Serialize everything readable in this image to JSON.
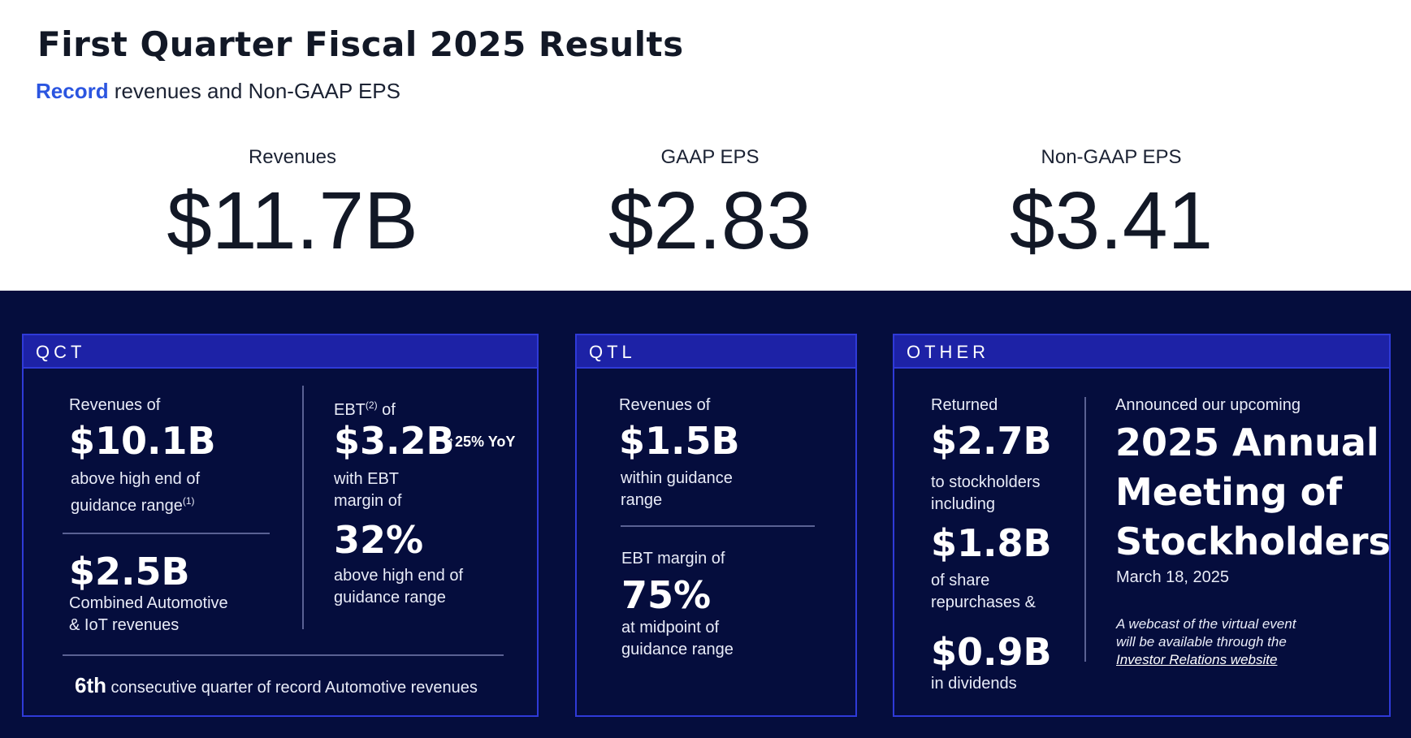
{
  "header": {
    "title": "First Quarter Fiscal 2025 Results",
    "subtitle_accent": "Record",
    "subtitle_rest": " revenues and Non-GAAP EPS"
  },
  "kpis": [
    {
      "label": "Revenues",
      "value": "$11.7B"
    },
    {
      "label": "GAAP EPS",
      "value": "$2.83"
    },
    {
      "label": "Non-GAAP EPS",
      "value": "$3.41"
    }
  ],
  "qct": {
    "heading": "QCT",
    "rev_label": "Revenues of",
    "rev_value": "$10.1B",
    "rev_desc_1": "above high end of",
    "rev_desc_2": "guidance range",
    "rev_note": "(1)",
    "auto_value": "$2.5B",
    "auto_desc_1": "Combined Automotive",
    "auto_desc_2": "& IoT revenues",
    "ebt_label": "EBT",
    "ebt_note": "(2)",
    "ebt_label_suffix": " of",
    "ebt_value": "$3.2B",
    "ebt_yoy": "↑25% YoY",
    "ebt_desc_1": "with EBT",
    "ebt_desc_2": "margin of",
    "margin_value": "32%",
    "margin_desc_1": "above high end of",
    "margin_desc_2": "guidance range",
    "footer_ordinal": "6th",
    "footer_text": " consecutive quarter of record Automotive revenues"
  },
  "qtl": {
    "heading": "QTL",
    "rev_label": "Revenues of",
    "rev_value": "$1.5B",
    "rev_desc_1": "within guidance",
    "rev_desc_2": "range",
    "ebt_label": "EBT margin of",
    "ebt_value": "75%",
    "ebt_desc_1": "at midpoint of",
    "ebt_desc_2": "guidance range"
  },
  "other": {
    "heading": "OTHER",
    "returned_label": "Returned",
    "returned_value": "$2.7B",
    "returned_desc_1": "to stockholders",
    "returned_desc_2": "including",
    "repurchase_value": "$1.8B",
    "repurchase_desc_1": "of share",
    "repurchase_desc_2": "repurchases &",
    "dividend_value": "$0.9B",
    "dividend_desc": "in dividends",
    "announce_label": "Announced our upcoming",
    "meeting_line_1": "2025 Annual",
    "meeting_line_2": "Meeting of",
    "meeting_line_3": "Stockholders",
    "meeting_date": "March 18, 2025",
    "webcast_1": "A webcast of the virtual event",
    "webcast_2": "will be available through the",
    "webcast_link": "Investor Relations website"
  },
  "colors": {
    "accent": "#2b55e0",
    "navy": "#050d3d",
    "card_border": "#2f3ad8",
    "card_header": "#1d22a6"
  }
}
